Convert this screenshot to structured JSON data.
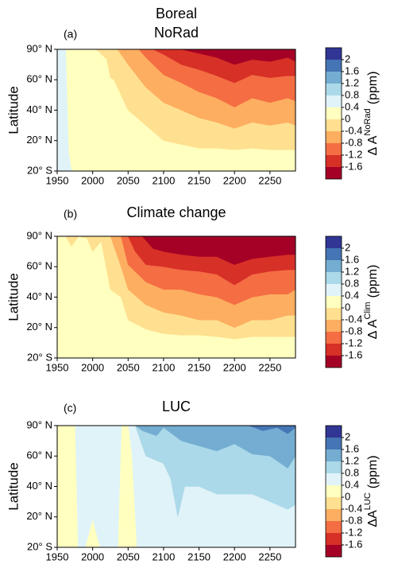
{
  "chart_data": [
    {
      "type": "contour",
      "title": [
        "Boreal",
        "NoRad"
      ],
      "panel_label": "(a)",
      "ylabel": "Latitude",
      "xlim": [
        1950,
        2286
      ],
      "xticks": [
        1950,
        2000,
        2050,
        2100,
        2150,
        2200,
        2250
      ],
      "ylim": [
        -20,
        90
      ],
      "yticks": [
        {
          "value": -20,
          "label": "20° S"
        },
        {
          "value": 20,
          "label": "20° N"
        },
        {
          "value": 40,
          "label": "40° N"
        },
        {
          "value": 60,
          "label": "60° N"
        },
        {
          "value": 90,
          "label": "90° N"
        }
      ],
      "colorbar": {
        "levels": [
          -1.6,
          -1.2,
          -0.8,
          -0.4,
          0,
          0.4,
          0.8,
          1.2,
          1.6,
          2
        ],
        "colors": [
          "#313695",
          "#4575b4",
          "#74add1",
          "#abd9e9",
          "#e0f3f8",
          "#ffffbf",
          "#fee090",
          "#fdae61",
          "#f46d43",
          "#d73027",
          "#a50026"
        ],
        "label": "Δ A",
        "label_sup": "NoRad",
        "units": "(ppm)"
      },
      "base_level": 0,
      "regions": [
        {
          "level": -0.4,
          "x": [
            1950,
            1962,
            1966,
            1970
          ],
          "upper": [
            90,
            90,
            5,
            -20
          ]
        },
        {
          "level": 0.4,
          "x": [
            2005,
            2020,
            2025,
            2030,
            2050,
            2075,
            2100,
            2125,
            2150,
            2175,
            2200,
            2225,
            2250,
            2275,
            2286
          ],
          "lower": [
            90,
            80,
            62,
            60,
            40,
            30,
            20,
            15,
            10,
            10,
            8,
            10,
            8,
            8,
            8
          ]
        },
        {
          "level": 0.8,
          "x": [
            2035,
            2050,
            2075,
            2100,
            2125,
            2150,
            2175,
            2200,
            2225,
            2250,
            2275,
            2286
          ],
          "lower": [
            90,
            75,
            55,
            45,
            40,
            35,
            32,
            28,
            32,
            30,
            32,
            30
          ]
        },
        {
          "level": 1.2,
          "x": [
            2065,
            2075,
            2100,
            2125,
            2150,
            2175,
            2200,
            2225,
            2250,
            2275,
            2286
          ],
          "lower": [
            90,
            82,
            65,
            58,
            52,
            48,
            42,
            48,
            45,
            48,
            46
          ]
        },
        {
          "level": 1.6,
          "x": [
            2085,
            2100,
            2125,
            2150,
            2175,
            2200,
            2225,
            2250,
            2275,
            2286
          ],
          "lower": [
            90,
            85,
            75,
            70,
            64,
            58,
            65,
            62,
            64,
            64
          ]
        },
        {
          "level": 2,
          "x": [
            2125,
            2150,
            2175,
            2200,
            2225,
            2250,
            2275,
            2286
          ],
          "lower": [
            90,
            86,
            82,
            75,
            80,
            78,
            82,
            78
          ]
        }
      ]
    },
    {
      "type": "contour",
      "title": [
        "Climate change"
      ],
      "panel_label": "(b)",
      "ylabel": "Latitude",
      "xlim": [
        1950,
        2286
      ],
      "xticks": [
        1950,
        2000,
        2050,
        2100,
        2150,
        2200,
        2250
      ],
      "ylim": [
        -20,
        90
      ],
      "yticks": [
        {
          "value": -20,
          "label": "20° S"
        },
        {
          "value": 20,
          "label": "20° N"
        },
        {
          "value": 40,
          "label": "40° N"
        },
        {
          "value": 60,
          "label": "60° N"
        },
        {
          "value": 90,
          "label": "90° N"
        }
      ],
      "colorbar": {
        "levels": [
          -1.6,
          -1.2,
          -0.8,
          -0.4,
          0,
          0.4,
          0.8,
          1.2,
          1.6,
          2
        ],
        "colors": [
          "#313695",
          "#4575b4",
          "#74add1",
          "#abd9e9",
          "#e0f3f8",
          "#ffffbf",
          "#fee090",
          "#fdae61",
          "#f46d43",
          "#d73027",
          "#a50026"
        ],
        "label": "Δ A",
        "label_sup": "Clim",
        "units": "(ppm)"
      },
      "base_level": 0,
      "regions": [
        {
          "level": 0.4,
          "x": [
            1962,
            1970,
            1980,
            1992,
            2000,
            2012,
            2025,
            2040,
            2050,
            2075,
            2100,
            2125,
            2150,
            2175,
            2200,
            2225,
            2250,
            2275,
            2286
          ],
          "lower": [
            90,
            80,
            90,
            88,
            75,
            85,
            45,
            40,
            25,
            18,
            12,
            10,
            10,
            8,
            5,
            8,
            8,
            8,
            8
          ]
        },
        {
          "level": 0.8,
          "x": [
            2025,
            2040,
            2050,
            2075,
            2100,
            2125,
            2150,
            2175,
            2200,
            2225,
            2250,
            2275,
            2286
          ],
          "lower": [
            90,
            60,
            45,
            35,
            30,
            28,
            25,
            25,
            20,
            25,
            25,
            28,
            28
          ]
        },
        {
          "level": 1.2,
          "x": [
            2040,
            2050,
            2075,
            2100,
            2125,
            2150,
            2175,
            2200,
            2225,
            2250,
            2275,
            2286
          ],
          "lower": [
            90,
            62,
            50,
            45,
            45,
            42,
            40,
            35,
            40,
            42,
            42,
            45
          ]
        },
        {
          "level": 1.6,
          "x": [
            2050,
            2060,
            2075,
            2100,
            2125,
            2150,
            2175,
            2200,
            2225,
            2250,
            2275,
            2286
          ],
          "lower": [
            90,
            75,
            62,
            60,
            58,
            57,
            55,
            48,
            55,
            57,
            58,
            58
          ]
        },
        {
          "level": 2,
          "x": [
            2070,
            2085,
            2100,
            2125,
            2150,
            2175,
            2200,
            2225,
            2250,
            2275,
            2286
          ],
          "lower": [
            90,
            78,
            75,
            72,
            70,
            70,
            62,
            68,
            70,
            72,
            72
          ]
        }
      ]
    },
    {
      "type": "contour",
      "title": [
        "LUC"
      ],
      "panel_label": "(c)",
      "ylabel": "Latitude",
      "xlim": [
        1950,
        2286
      ],
      "xticks": [
        1950,
        2000,
        2050,
        2100,
        2150,
        2200,
        2250
      ],
      "ylim": [
        -20,
        90
      ],
      "yticks": [
        {
          "value": -20,
          "label": "20° S"
        },
        {
          "value": 20,
          "label": "20° N"
        },
        {
          "value": 40,
          "label": "40° N"
        },
        {
          "value": 60,
          "label": "60° N"
        },
        {
          "value": 90,
          "label": "90° N"
        }
      ],
      "colorbar": {
        "levels": [
          -1.6,
          -1.2,
          -0.8,
          -0.4,
          0,
          0.4,
          0.8,
          1.2,
          1.6,
          2
        ],
        "colors": [
          "#313695",
          "#4575b4",
          "#74add1",
          "#abd9e9",
          "#e0f3f8",
          "#ffffbf",
          "#fee090",
          "#fdae61",
          "#f46d43",
          "#d73027",
          "#a50026"
        ],
        "label": "ΔA",
        "label_sup": "LUC",
        "units": "(ppm)"
      },
      "base_level": -0.4,
      "regions": [
        {
          "level": 0,
          "x": [
            1950,
            1975,
            1979
          ],
          "upper": [
            90,
            90,
            -20
          ]
        },
        {
          "level": 0,
          "x": [
            1990,
            2000,
            2010
          ],
          "upper": [
            -20,
            15,
            -20
          ]
        },
        {
          "level": 0,
          "x": [
            2036,
            2041,
            2050,
            2055,
            2062
          ],
          "upper": [
            -20,
            90,
            90,
            60,
            -20
          ]
        },
        {
          "level": -0.8,
          "x": [
            2060,
            2075,
            2100,
            2110,
            2120,
            2130,
            2150,
            2175,
            2200,
            2225,
            2250,
            2275,
            2286
          ],
          "lower": [
            90,
            60,
            55,
            45,
            20,
            40,
            40,
            35,
            35,
            35,
            30,
            25,
            28
          ]
        },
        {
          "level": -1.2,
          "x": [
            2060,
            2070,
            2090,
            2100,
            2125,
            2150,
            2175,
            2200,
            2225,
            2250,
            2275,
            2286
          ],
          "lower": [
            90,
            85,
            80,
            88,
            75,
            70,
            65,
            72,
            62,
            60,
            52,
            60
          ]
        },
        {
          "level": -1.6,
          "x": [
            2220,
            2240,
            2260,
            2275,
            2286
          ],
          "lower": [
            90,
            85,
            88,
            82,
            88
          ]
        }
      ]
    }
  ]
}
